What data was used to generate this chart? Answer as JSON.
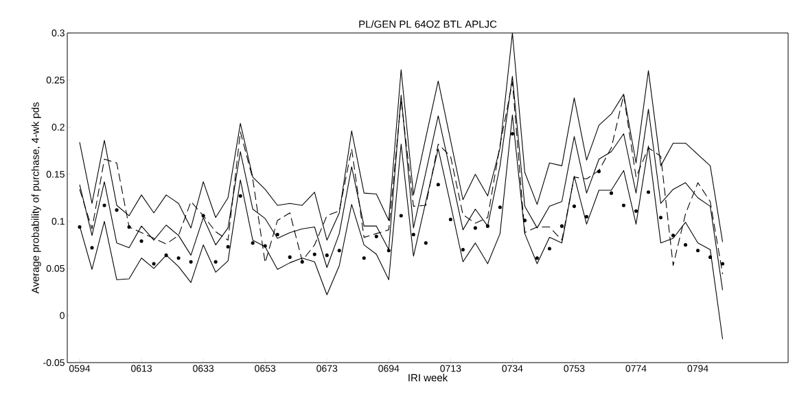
{
  "chart_data": {
    "type": "line",
    "title": "PL/GEN PL 64OZ BTL APLJC",
    "xlabel": "IRI week",
    "ylabel": "Average probability of purchase, 4-wk pds",
    "categories": [
      "0594",
      null,
      null,
      null,
      null,
      "0613",
      null,
      null,
      null,
      null,
      "0633",
      null,
      null,
      null,
      null,
      "0653",
      null,
      null,
      null,
      null,
      "0673",
      null,
      null,
      null,
      null,
      "0694",
      null,
      null,
      null,
      null,
      "0713",
      null,
      null,
      null,
      null,
      "0734",
      null,
      null,
      null,
      null,
      "0753",
      null,
      null,
      null,
      null,
      "0774",
      null,
      null,
      null,
      null,
      "0794",
      null,
      null
    ],
    "ylim": [
      -0.05,
      0.3
    ],
    "yticks": [
      -0.05,
      0,
      0.05,
      0.1,
      0.15,
      0.2,
      0.25,
      0.3
    ],
    "series": [
      {
        "color": "#000000",
        "line_style": "solid",
        "values": [
          0.184,
          0.119,
          0.186,
          0.117,
          0.106,
          0.128,
          0.109,
          0.128,
          0.119,
          0.093,
          0.142,
          0.104,
          0.125,
          0.204,
          0.147,
          0.134,
          0.117,
          0.119,
          0.117,
          0.131,
          0.08,
          0.109,
          0.196,
          0.13,
          0.129,
          0.101,
          0.261,
          0.128,
          0.189,
          0.249,
          0.186,
          0.123,
          0.15,
          0.127,
          0.178,
          0.3,
          0.152,
          0.118,
          0.162,
          0.159,
          0.231,
          0.165,
          0.202,
          0.214,
          0.235,
          0.162,
          0.26,
          0.159,
          0.183,
          0.183,
          0.171,
          0.159,
          0.078
        ]
      },
      {
        "color": "#000000",
        "line_style": "solid",
        "values": [
          0.139,
          0.085,
          0.142,
          0.077,
          0.072,
          0.095,
          0.08,
          0.096,
          0.085,
          0.064,
          0.104,
          0.075,
          0.093,
          0.174,
          0.113,
          0.103,
          0.082,
          0.088,
          0.092,
          0.094,
          0.051,
          0.087,
          0.158,
          0.095,
          0.095,
          0.07,
          0.234,
          0.093,
          0.152,
          0.212,
          0.152,
          0.091,
          0.113,
          0.095,
          0.159,
          0.254,
          0.116,
          0.093,
          0.116,
          0.121,
          0.19,
          0.13,
          0.166,
          0.174,
          0.193,
          0.13,
          0.219,
          0.119,
          0.134,
          0.141,
          0.125,
          0.116,
          0.027
        ]
      },
      {
        "color": "#000000",
        "line_style": "solid",
        "values": [
          0.095,
          0.049,
          0.1,
          0.038,
          0.039,
          0.061,
          0.05,
          0.064,
          0.052,
          0.035,
          0.075,
          0.046,
          0.058,
          0.144,
          0.08,
          0.073,
          0.049,
          0.056,
          0.061,
          0.057,
          0.022,
          0.053,
          0.118,
          0.075,
          0.065,
          0.038,
          0.182,
          0.063,
          0.121,
          0.177,
          0.118,
          0.057,
          0.077,
          0.055,
          0.087,
          0.213,
          0.087,
          0.055,
          0.083,
          0.077,
          0.148,
          0.097,
          0.133,
          0.133,
          0.154,
          0.097,
          0.18,
          0.077,
          0.082,
          0.099,
          0.077,
          0.07,
          -0.025
        ]
      },
      {
        "color": "#000000",
        "line_style": "dashed",
        "values": [
          0.134,
          0.092,
          0.166,
          0.162,
          0.094,
          0.088,
          0.082,
          0.076,
          0.085,
          0.121,
          0.106,
          0.089,
          0.08,
          0.195,
          0.145,
          0.056,
          0.101,
          0.109,
          0.058,
          0.075,
          0.106,
          0.111,
          0.177,
          0.083,
          0.087,
          0.091,
          0.229,
          0.116,
          0.117,
          0.182,
          0.169,
          0.107,
          0.098,
          0.104,
          0.181,
          0.248,
          0.088,
          0.094,
          0.094,
          0.08,
          0.147,
          0.145,
          0.154,
          0.178,
          0.234,
          0.147,
          0.178,
          0.169,
          0.053,
          0.108,
          0.141,
          0.121,
          0.044
        ]
      },
      {
        "type": "scatter",
        "color": "#000000",
        "marker": "circle",
        "values": [
          0.094,
          0.072,
          0.117,
          0.112,
          0.094,
          0.079,
          0.055,
          0.064,
          0.061,
          0.057,
          0.106,
          0.057,
          0.073,
          0.127,
          0.077,
          0.074,
          0.086,
          0.062,
          0.057,
          0.065,
          0.064,
          0.069,
          null,
          0.061,
          0.084,
          0.069,
          0.106,
          0.086,
          0.077,
          0.139,
          0.102,
          0.07,
          0.093,
          0.095,
          0.115,
          0.193,
          0.101,
          0.061,
          0.071,
          0.095,
          0.116,
          0.105,
          0.153,
          0.13,
          0.117,
          0.111,
          0.131,
          0.104,
          0.085,
          0.075,
          0.069,
          0.062,
          0.055
        ]
      }
    ]
  }
}
